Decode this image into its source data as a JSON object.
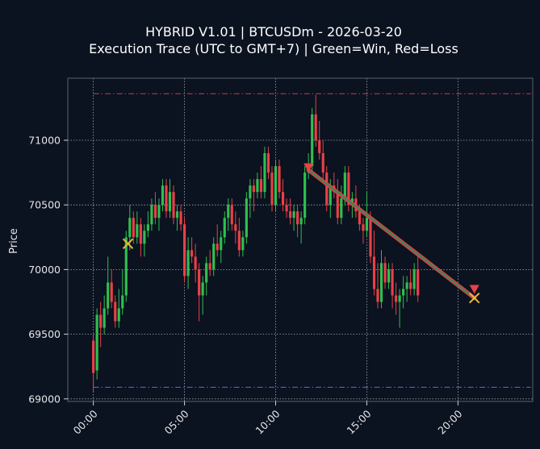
{
  "chart_data": {
    "type": "candlestick",
    "title": "HYBRID V1.01 | BTCUSDm - 2026-03-20",
    "subtitle": "Execution Trace (UTC to GMT+7) | Green=Win, Red=Loss",
    "ylabel": "Price",
    "xlabel": "",
    "ylim": [
      68980,
      71480
    ],
    "xlim": [
      -1.4,
      24.1
    ],
    "yticks": [
      69000,
      69500,
      70000,
      70500,
      71000
    ],
    "ytick_labels": [
      "69000",
      "69500",
      "70000",
      "70500",
      "71000"
    ],
    "xticks": [
      0,
      5,
      10,
      15,
      20
    ],
    "xtick_labels": [
      "00:00",
      "05:00",
      "10:00",
      "15:00",
      "20:00"
    ],
    "grid": true,
    "colors": {
      "background": "#0b1220",
      "up": "#2fbf4f",
      "down": "#e84147",
      "grid": "#bcc3cc",
      "upper_line": "#b8454f",
      "lower_line": "#4a78c4",
      "marker": "#e8b93a",
      "trade_line": "#2e8b57"
    },
    "horizontal_lines": [
      {
        "y": 71360,
        "color": "#b8454f",
        "style": "dash-dot"
      },
      {
        "y": 69090,
        "color": "#4a78c4",
        "style": "dash-dot"
      }
    ],
    "candles_per_hour": 5,
    "candles": [
      [
        69450,
        69500,
        69050,
        69200
      ],
      [
        69220,
        69700,
        69150,
        69650
      ],
      [
        69650,
        69750,
        69400,
        69550
      ],
      [
        69550,
        69800,
        69500,
        69700
      ],
      [
        69700,
        70100,
        69650,
        69900
      ],
      [
        69900,
        70000,
        69700,
        69750
      ],
      [
        69750,
        69800,
        69550,
        69600
      ],
      [
        69600,
        69850,
        69550,
        69700
      ],
      [
        69700,
        70000,
        69650,
        69800
      ],
      [
        69800,
        70300,
        69750,
        70250
      ],
      [
        70250,
        70500,
        70150,
        70400
      ],
      [
        70400,
        70450,
        70200,
        70250
      ],
      [
        70250,
        70450,
        70200,
        70350
      ],
      [
        70350,
        70400,
        70100,
        70200
      ],
      [
        70200,
        70350,
        70100,
        70300
      ],
      [
        70300,
        70450,
        70250,
        70350
      ],
      [
        70350,
        70550,
        70300,
        70500
      ],
      [
        70500,
        70600,
        70350,
        70400
      ],
      [
        70400,
        70550,
        70300,
        70500
      ],
      [
        70500,
        70700,
        70450,
        70650
      ],
      [
        70650,
        70700,
        70400,
        70450
      ],
      [
        70450,
        70700,
        70400,
        70600
      ],
      [
        70600,
        70650,
        70350,
        70400
      ],
      [
        70400,
        70500,
        70300,
        70450
      ],
      [
        70450,
        70500,
        70300,
        70350
      ],
      [
        70350,
        70400,
        69900,
        69950
      ],
      [
        69950,
        70250,
        69850,
        70150
      ],
      [
        70150,
        70250,
        70050,
        70100
      ],
      [
        70100,
        70200,
        69900,
        70000
      ],
      [
        70000,
        70050,
        69600,
        69800
      ],
      [
        69800,
        69950,
        69650,
        69900
      ],
      [
        69900,
        70100,
        69800,
        70050
      ],
      [
        70050,
        70150,
        69950,
        70000
      ],
      [
        70000,
        70250,
        69950,
        70200
      ],
      [
        70200,
        70350,
        70100,
        70150
      ],
      [
        70150,
        70300,
        70050,
        70250
      ],
      [
        70250,
        70450,
        70200,
        70400
      ],
      [
        70400,
        70550,
        70300,
        70500
      ],
      [
        70500,
        70550,
        70300,
        70350
      ],
      [
        70350,
        70450,
        70200,
        70300
      ],
      [
        70300,
        70400,
        70100,
        70150
      ],
      [
        70150,
        70300,
        70100,
        70250
      ],
      [
        70250,
        70600,
        70200,
        70550
      ],
      [
        70550,
        70700,
        70400,
        70650
      ],
      [
        70650,
        70700,
        70450,
        70600
      ],
      [
        70600,
        70750,
        70550,
        70700
      ],
      [
        70700,
        70800,
        70550,
        70600
      ],
      [
        70600,
        70950,
        70550,
        70900
      ],
      [
        70900,
        70950,
        70700,
        70750
      ],
      [
        70750,
        70800,
        70450,
        70500
      ],
      [
        70500,
        70850,
        70450,
        70800
      ],
      [
        70800,
        70850,
        70550,
        70600
      ],
      [
        70600,
        70700,
        70450,
        70500
      ],
      [
        70500,
        70550,
        70400,
        70450
      ],
      [
        70450,
        70550,
        70350,
        70400
      ],
      [
        70400,
        70500,
        70300,
        70450
      ],
      [
        70450,
        70500,
        70250,
        70350
      ],
      [
        70350,
        70450,
        70200,
        70400
      ],
      [
        70400,
        70800,
        70350,
        70750
      ],
      [
        70750,
        70900,
        70700,
        70800
      ],
      [
        70800,
        71250,
        70750,
        71200
      ],
      [
        71200,
        71350,
        70950,
        71000
      ],
      [
        71000,
        71150,
        70850,
        70900
      ],
      [
        70900,
        71000,
        70700,
        70750
      ],
      [
        70750,
        70800,
        70450,
        70500
      ],
      [
        70500,
        70700,
        70400,
        70650
      ],
      [
        70650,
        70750,
        70550,
        70600
      ],
      [
        70600,
        70700,
        70350,
        70400
      ],
      [
        70400,
        70650,
        70350,
        70550
      ],
      [
        70550,
        70800,
        70500,
        70750
      ],
      [
        70750,
        70800,
        70450,
        70500
      ],
      [
        70500,
        70600,
        70400,
        70550
      ],
      [
        70550,
        70650,
        70400,
        70450
      ],
      [
        70450,
        70500,
        70300,
        70350
      ],
      [
        70350,
        70400,
        70200,
        70300
      ],
      [
        70300,
        70600,
        70250,
        70400
      ],
      [
        70400,
        70450,
        70050,
        70100
      ],
      [
        70100,
        70300,
        69800,
        69850
      ],
      [
        69850,
        70050,
        69700,
        69750
      ],
      [
        69750,
        70150,
        69700,
        70050
      ],
      [
        70050,
        70100,
        69850,
        69900
      ],
      [
        69900,
        70050,
        69850,
        70000
      ],
      [
        70000,
        70050,
        69700,
        69800
      ],
      [
        69800,
        69900,
        69650,
        69750
      ],
      [
        69750,
        69850,
        69550,
        69800
      ],
      [
        69800,
        69950,
        69700,
        69850
      ],
      [
        69850,
        69950,
        69750,
        69900
      ],
      [
        69900,
        70000,
        69800,
        69850
      ],
      [
        69850,
        70050,
        69800,
        70000
      ],
      [
        70000,
        70100,
        69750,
        69800
      ]
    ],
    "trades": [
      {
        "x_entry": 11.8,
        "y_entry": 70770,
        "x_exit": 20.9,
        "y_exit": 69780,
        "result": "win"
      }
    ],
    "markers": [
      {
        "x": 1.9,
        "y": 70200,
        "shape": "x"
      },
      {
        "x": 20.9,
        "y": 69780,
        "shape": "x"
      }
    ],
    "entry_triangles": [
      {
        "x": 11.8,
        "y": 70790
      },
      {
        "x": 20.9,
        "y": 69850
      }
    ]
  }
}
